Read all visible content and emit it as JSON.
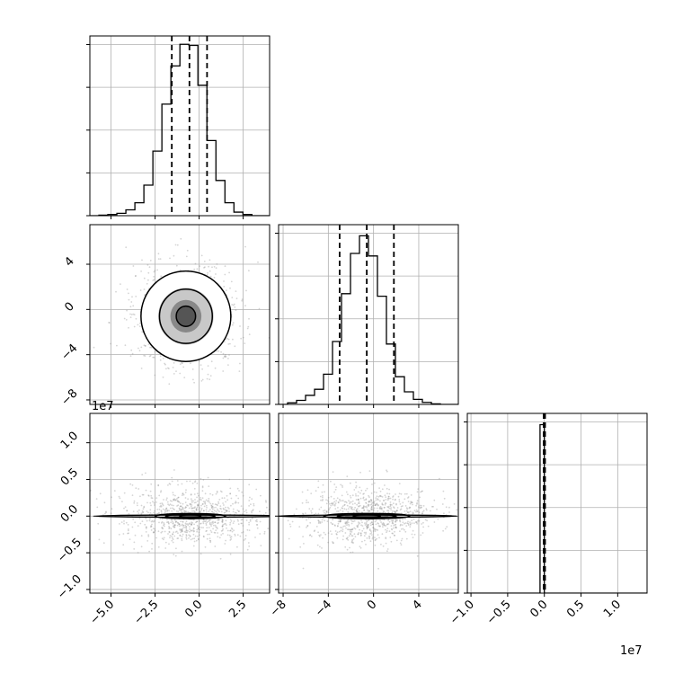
{
  "chart_data": {
    "type": "corner",
    "title": "",
    "parameters": [
      {
        "name": "",
        "range": [
          -6.2,
          4.0
        ],
        "ticks": [
          "−5.0",
          "−2.5",
          "0.0",
          "2.5"
        ],
        "tick_values": [
          -5.0,
          -2.5,
          0.0,
          2.5
        ]
      },
      {
        "name": "",
        "range": [
          -8.4,
          7.5
        ],
        "ticks": [
          "−8",
          "−4",
          "0",
          "4"
        ],
        "tick_values": [
          -8,
          -4,
          0,
          4
        ]
      },
      {
        "name": "",
        "range": [
          -1.05,
          1.4
        ],
        "ticks": [
          "−1.0",
          "−0.5",
          "0.0",
          "0.5",
          "1.0"
        ],
        "tick_values": [
          -1.0,
          -0.5,
          0.0,
          0.5,
          1.0
        ],
        "offset_label": "1e7"
      }
    ],
    "marginals": [
      {
        "param": 0,
        "bin_edges": [
          -6.2,
          -5.689,
          -5.178,
          -4.667,
          -4.156,
          -3.645,
          -3.134,
          -2.623,
          -2.112,
          -1.601,
          -1.09,
          -0.579,
          -0.068,
          0.443,
          0.954,
          1.465,
          1.976,
          2.487,
          2.998,
          3.509,
          4.0
        ],
        "counts": [
          0,
          1,
          2,
          4,
          10,
          22,
          52,
          110,
          190,
          255,
          292,
          290,
          222,
          128,
          60,
          22,
          6,
          2,
          0,
          0
        ],
        "quantiles": [
          -1.55,
          -0.55,
          0.45
        ],
        "ylim": [
          0,
          300
        ]
      },
      {
        "param": 1,
        "bin_edges": [
          -8.4,
          -7.605,
          -6.81,
          -6.015,
          -5.22,
          -4.425,
          -3.63,
          -2.835,
          -2.04,
          -1.245,
          -0.45,
          0.345,
          1.14,
          1.935,
          2.73,
          3.525,
          4.32,
          5.115,
          5.91,
          6.705,
          7.5
        ],
        "counts": [
          0,
          3,
          8,
          18,
          30,
          60,
          125,
          220,
          300,
          335,
          295,
          215,
          120,
          55,
          25,
          10,
          4,
          1,
          0,
          0
        ],
        "quantiles": [
          -3.0,
          -0.6,
          1.8
        ],
        "ylim": [
          0,
          350
        ]
      },
      {
        "param": 2,
        "bin_edges": [
          -1.05,
          -0.0588,
          -0.0294,
          0.0,
          1.4
        ],
        "counts": [
          0,
          440,
          440,
          0
        ],
        "quantiles": [
          -0.01,
          0.0,
          0.01
        ],
        "ylim": [
          0,
          460
        ]
      }
    ],
    "contours": [
      {
        "pair": [
          0,
          1
        ],
        "center": [
          -0.75,
          -0.6
        ],
        "levels": [
          {
            "rx": 0.55,
            "ry": 0.9
          },
          {
            "rx": 1.5,
            "ry": 2.4
          },
          {
            "rx": 2.55,
            "ry": 4.0
          },
          {
            "rx": 3.5,
            "ry": 5.5
          }
        ],
        "scatter_extent": [
          4.5,
          7.2
        ]
      },
      {
        "pair": [
          0,
          2
        ],
        "center": [
          -0.5,
          0.0
        ],
        "levels": [
          {
            "rx": 0.6,
            "ry": 0.012
          },
          {
            "rx": 1.4,
            "ry": 0.022
          },
          {
            "rx": 2.0,
            "ry": 0.035
          },
          {
            "rx": 5.5,
            "ry": 0.004
          }
        ],
        "scatter_extent": [
          6.0,
          0.6
        ]
      },
      {
        "pair": [
          1,
          2
        ],
        "center": [
          -0.6,
          0.0
        ],
        "levels": [
          {
            "rx": 1.2,
            "ry": 0.012
          },
          {
            "rx": 2.6,
            "ry": 0.022
          },
          {
            "rx": 3.8,
            "ry": 0.035
          },
          {
            "rx": 8.0,
            "ry": 0.004
          }
        ],
        "scatter_extent": [
          8.5,
          0.6
        ]
      }
    ],
    "grid": true
  }
}
